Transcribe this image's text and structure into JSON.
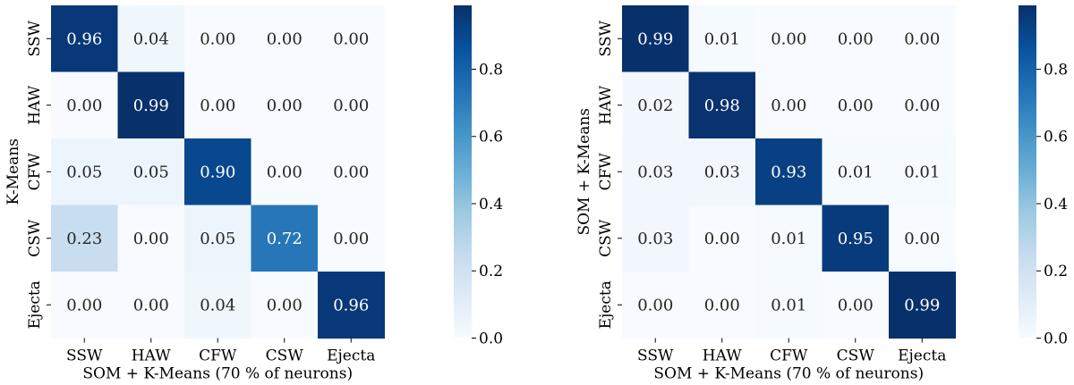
{
  "chart_data": [
    {
      "type": "heatmap",
      "title": "",
      "xlabel": "SOM + K-Means (70 % of neurons)",
      "ylabel": "K-Means",
      "x_categories": [
        "SSW",
        "HAW",
        "CFW",
        "CSW",
        "Ejecta"
      ],
      "y_categories": [
        "SSW",
        "HAW",
        "CFW",
        "CSW",
        "Ejecta"
      ],
      "values": [
        [
          0.96,
          0.04,
          0.0,
          0.0,
          0.0
        ],
        [
          0.0,
          0.99,
          0.0,
          0.0,
          0.0
        ],
        [
          0.05,
          0.05,
          0.9,
          0.0,
          0.0
        ],
        [
          0.23,
          0.0,
          0.05,
          0.72,
          0.0
        ],
        [
          0.0,
          0.0,
          0.04,
          0.0,
          0.96
        ]
      ],
      "labels": [
        [
          "0.96",
          "0.04",
          "0.00",
          "0.00",
          "0.00"
        ],
        [
          "0.00",
          "0.99",
          "0.00",
          "0.00",
          "0.00"
        ],
        [
          "0.05",
          "0.05",
          "0.90",
          "0.00",
          "0.00"
        ],
        [
          "0.23",
          "0.00",
          "0.05",
          "0.72",
          "0.00"
        ],
        [
          "0.00",
          "0.00",
          "0.04",
          "0.00",
          "0.96"
        ]
      ],
      "colorbar": {
        "min": 0.0,
        "max": 0.99,
        "cmap": "Blues",
        "ticks": [
          "0.0",
          "0.2",
          "0.4",
          "0.6",
          "0.8"
        ]
      }
    },
    {
      "type": "heatmap",
      "title": "",
      "xlabel": "SOM + K-Means (70 % of neurons)",
      "ylabel": "SOM + K-Means",
      "x_categories": [
        "SSW",
        "HAW",
        "CFW",
        "CSW",
        "Ejecta"
      ],
      "y_categories": [
        "SSW",
        "HAW",
        "CFW",
        "CSW",
        "Ejecta"
      ],
      "values": [
        [
          0.99,
          0.01,
          0.0,
          0.0,
          0.0
        ],
        [
          0.02,
          0.98,
          0.0,
          0.0,
          0.0
        ],
        [
          0.03,
          0.03,
          0.93,
          0.01,
          0.01
        ],
        [
          0.03,
          0.0,
          0.01,
          0.95,
          0.0
        ],
        [
          0.0,
          0.0,
          0.01,
          0.0,
          0.99
        ]
      ],
      "labels": [
        [
          "0.99",
          "0.01",
          "0.00",
          "0.00",
          "0.00"
        ],
        [
          "0.02",
          "0.98",
          "0.00",
          "0.00",
          "0.00"
        ],
        [
          "0.03",
          "0.03",
          "0.93",
          "0.01",
          "0.01"
        ],
        [
          "0.03",
          "0.00",
          "0.01",
          "0.95",
          "0.00"
        ],
        [
          "0.00",
          "0.00",
          "0.01",
          "0.00",
          "0.99"
        ]
      ],
      "colorbar": {
        "min": 0.0,
        "max": 0.99,
        "cmap": "Blues",
        "ticks": [
          "0.0",
          "0.2",
          "0.4",
          "0.6",
          "0.8"
        ]
      }
    }
  ]
}
